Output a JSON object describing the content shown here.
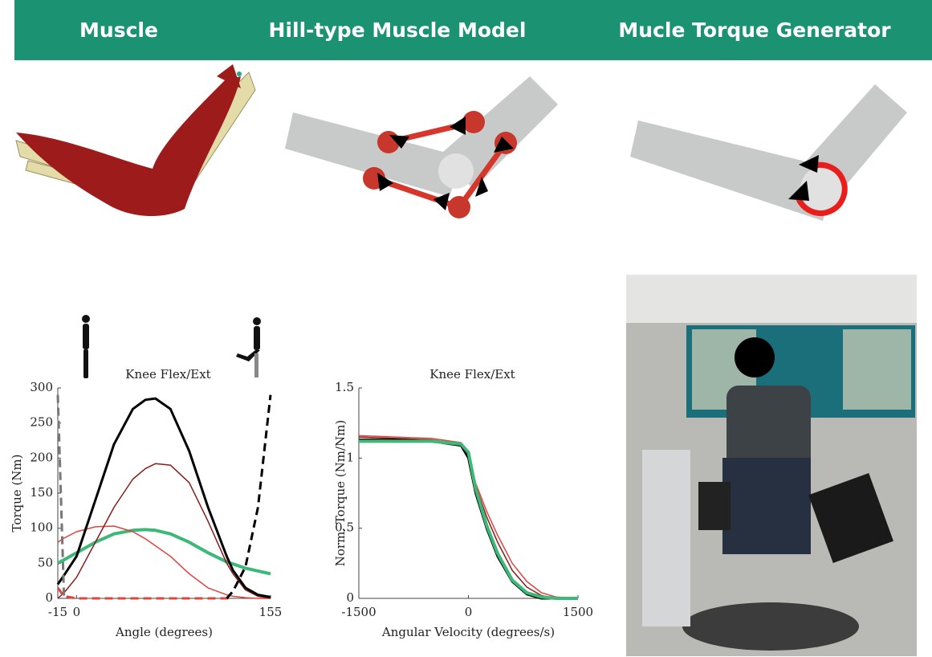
{
  "header": {
    "titles": [
      "Muscle",
      "Hill-type Muscle Model",
      "Mucle Torque Generator"
    ]
  },
  "chart_data": [
    {
      "type": "line",
      "title": "Knee Flex/Ext",
      "xlabel": "Angle (degrees)",
      "ylabel": "Torque (Nm)",
      "x": [
        -15,
        -10,
        0,
        15,
        30,
        45,
        55,
        63,
        75,
        90,
        105,
        120,
        125,
        135,
        145,
        155
      ],
      "xlim": [
        -15,
        155
      ],
      "xticks": [
        -15,
        0,
        155
      ],
      "ylim": [
        0,
        300
      ],
      "yticks": [
        0,
        50,
        100,
        150,
        200,
        250,
        300
      ],
      "series": [
        {
          "color": "#3cb878",
          "width": 4,
          "dashed": false,
          "values": [
            50,
            55,
            65,
            80,
            92,
            97,
            98,
            97,
            92,
            80,
            65,
            52,
            49,
            43,
            39,
            35
          ]
        },
        {
          "color": "#e0443e",
          "width": 1.5,
          "dashed": false,
          "values": [
            80,
            86,
            95,
            102,
            103,
            95,
            85,
            75,
            60,
            35,
            15,
            5,
            3,
            1,
            0,
            0
          ]
        },
        {
          "color": "#8b1a1a",
          "width": 1.5,
          "dashed": false,
          "values": [
            0,
            8,
            30,
            80,
            130,
            170,
            185,
            192,
            190,
            165,
            110,
            50,
            35,
            12,
            3,
            0
          ]
        },
        {
          "color": "#000000",
          "width": 3,
          "dashed": false,
          "values": [
            20,
            33,
            60,
            140,
            220,
            270,
            283,
            285,
            270,
            210,
            130,
            60,
            40,
            15,
            5,
            2
          ]
        },
        {
          "color": "#e0443e",
          "width": 3,
          "dashed": true,
          "values": [
            15,
            3,
            0,
            0,
            0,
            0,
            0,
            0,
            0,
            0,
            0,
            0,
            0,
            null,
            null,
            null
          ]
        },
        {
          "color": "#777777",
          "width": 3,
          "dashed": true,
          "values": [
            290,
            0,
            null,
            null,
            null,
            null,
            null,
            null,
            null,
            null,
            null,
            null,
            null,
            null,
            null,
            null
          ]
        },
        {
          "color": "#000000",
          "width": 3,
          "dashed": true,
          "values": [
            null,
            null,
            null,
            null,
            null,
            null,
            null,
            null,
            null,
            null,
            null,
            0,
            10,
            45,
            130,
            290
          ]
        }
      ]
    },
    {
      "type": "line",
      "title": "Knee Flex/Ext",
      "xlabel": "Angular Velocity (degrees/s)",
      "ylabel": "Norm. Torque (Nm/Nm)",
      "x": [
        -1500,
        -1000,
        -500,
        -100,
        0,
        100,
        250,
        400,
        600,
        800,
        1000,
        1200,
        1500
      ],
      "xlim": [
        -1500,
        1500
      ],
      "xticks": [
        -1500,
        0,
        1500
      ],
      "ylim": [
        0,
        1.5
      ],
      "yticks": [
        0,
        0.5,
        1,
        1.5
      ],
      "series": [
        {
          "color": "#e0443e",
          "width": 1.5,
          "dashed": false,
          "values": [
            1.16,
            1.15,
            1.14,
            1.11,
            1.02,
            0.82,
            0.62,
            0.45,
            0.25,
            0.12,
            0.04,
            0.01,
            0
          ]
        },
        {
          "color": "#8b1a1a",
          "width": 1.5,
          "dashed": false,
          "values": [
            1.15,
            1.14,
            1.13,
            1.1,
            1.0,
            0.8,
            0.58,
            0.4,
            0.2,
            0.08,
            0.02,
            0,
            0
          ]
        },
        {
          "color": "#000000",
          "width": 3,
          "dashed": false,
          "values": [
            1.13,
            1.13,
            1.12,
            1.09,
            1.0,
            0.75,
            0.5,
            0.3,
            0.12,
            0.03,
            0,
            0,
            0
          ]
        },
        {
          "color": "#3cb878",
          "width": 4,
          "dashed": false,
          "values": [
            1.12,
            1.12,
            1.12,
            1.1,
            1.04,
            0.78,
            0.52,
            0.32,
            0.13,
            0.04,
            0.01,
            0,
            0
          ]
        }
      ]
    }
  ]
}
